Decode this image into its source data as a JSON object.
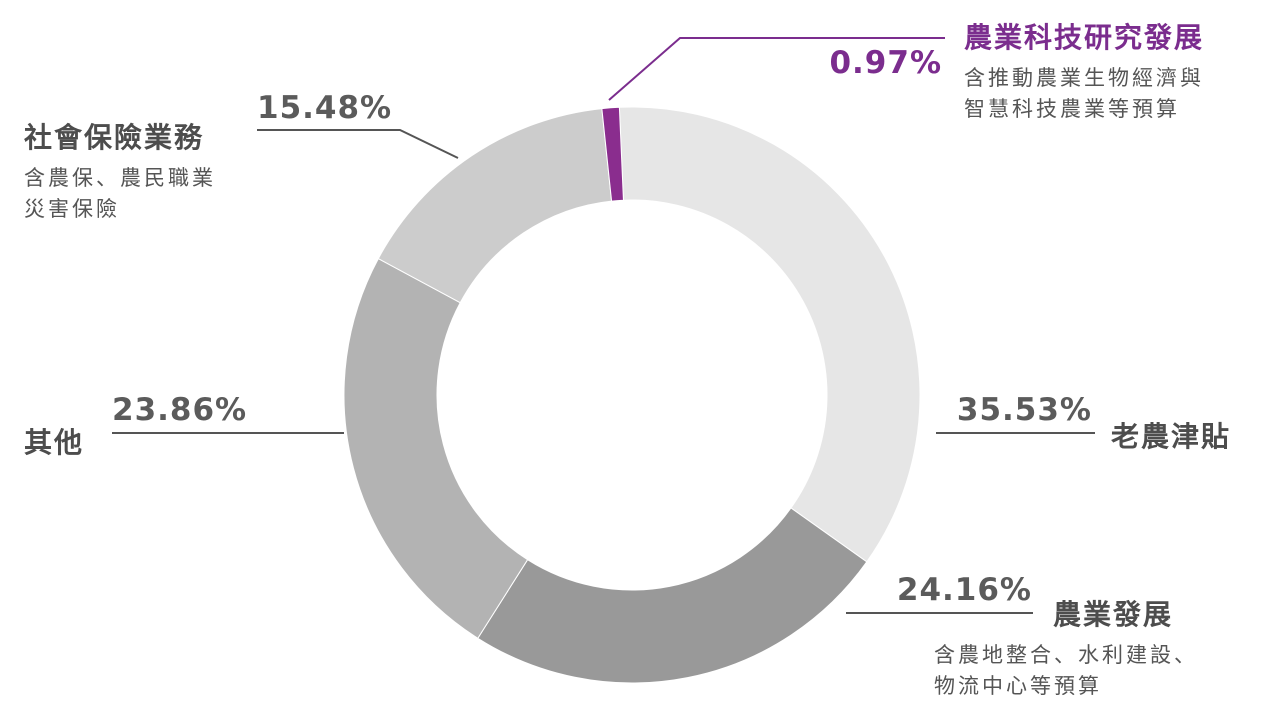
{
  "chart_data": {
    "type": "pie",
    "donut": true,
    "slices": [
      {
        "label": "老農津貼",
        "value": 35.53,
        "value_label": "35.53%",
        "color": "#e6e6e6",
        "note": ""
      },
      {
        "label": "農業發展",
        "value": 24.16,
        "value_label": "24.16%",
        "color": "#999999",
        "note": "含農地整合、水利建設、\n物流中心等預算"
      },
      {
        "label": "其他",
        "value": 23.86,
        "value_label": "23.86%",
        "color": "#b3b3b3",
        "note": ""
      },
      {
        "label": "社會保險業務",
        "value": 15.48,
        "value_label": "15.48%",
        "color": "#cccccc",
        "note": "含農保、農民職業\n災害保險"
      },
      {
        "label": "農業科技研究發展",
        "value": 0.97,
        "value_label": "0.97%",
        "color": "#8a2d8e",
        "note": "含推動農業生物經濟與\n智慧科技農業等預算"
      }
    ]
  }
}
